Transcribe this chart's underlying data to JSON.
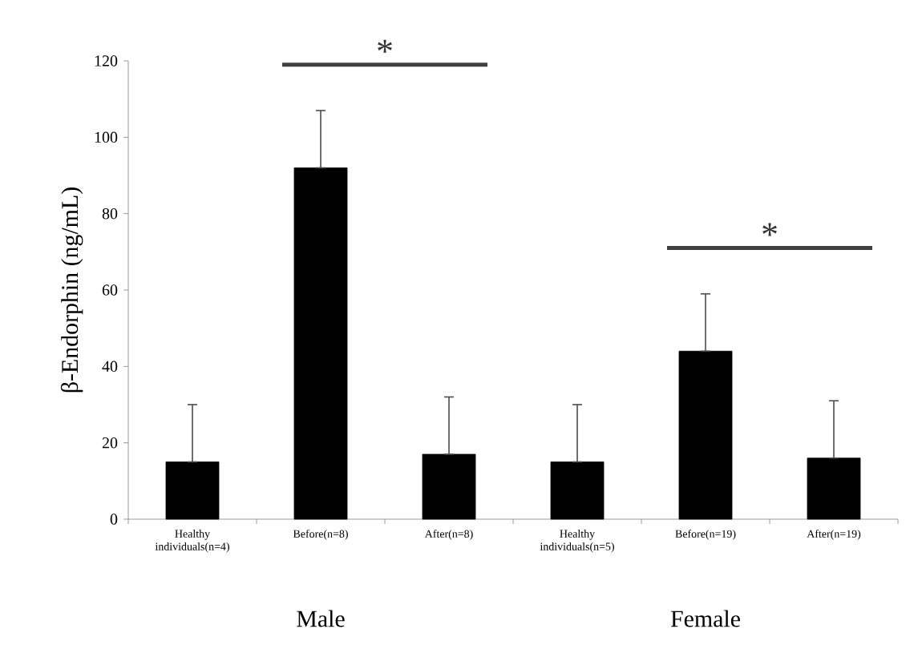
{
  "chart_data": {
    "type": "bar",
    "ylabel": "β-Endorphin (ng/mL)",
    "categories": [
      "Healthy individuals(n=4)",
      "Before(n=8)",
      "After(n=8)",
      "Healthy individuals(n=5)",
      "Before(n=19)",
      "After(n=19)"
    ],
    "values": [
      15,
      92,
      17,
      15,
      44,
      16
    ],
    "errors": [
      [
        15,
        30
      ],
      [
        92,
        107
      ],
      [
        17,
        32
      ],
      [
        15,
        30
      ],
      [
        44,
        59
      ],
      [
        16,
        31
      ]
    ],
    "color": "#000000",
    "ylim": [
      0,
      120
    ],
    "yticks": [
      0,
      20,
      40,
      60,
      80,
      100,
      120
    ],
    "annotations": [
      "*",
      "*",
      "Male",
      "Female"
    ]
  }
}
